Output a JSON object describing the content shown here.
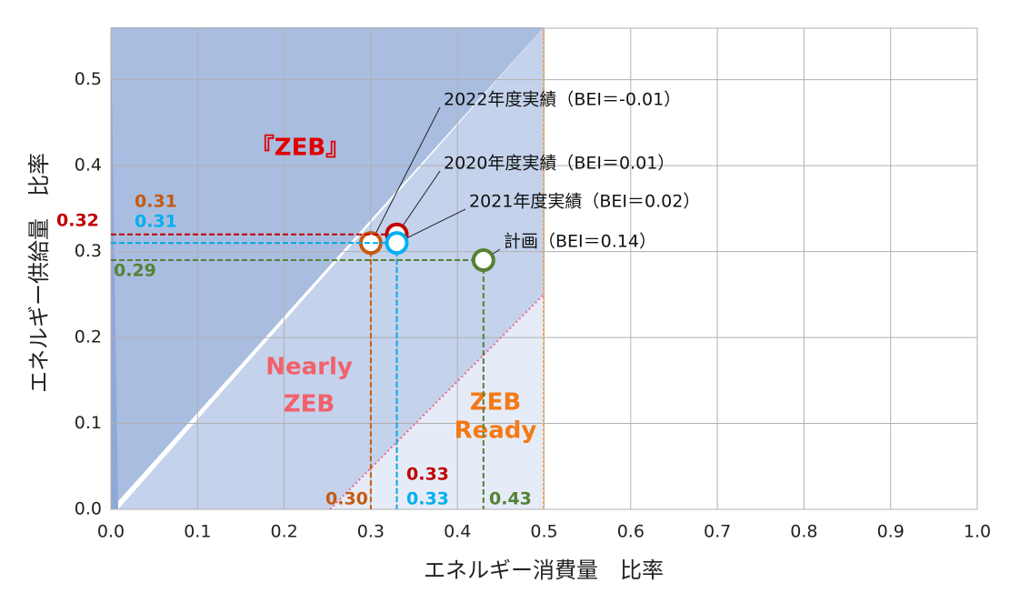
{
  "chart_data": {
    "type": "scatter",
    "x_label": "エネルギー消費量　比率",
    "y_label": "エネルギー供給量　比率",
    "xlim": [
      0,
      1
    ],
    "ylim": [
      0,
      0.56
    ],
    "xticks": [
      {
        "value": 0,
        "label": "0.0"
      },
      {
        "value": 0.1,
        "label": "0.1"
      },
      {
        "value": 0.2,
        "label": "0.2"
      },
      {
        "value": 0.3,
        "label": "0.3"
      },
      {
        "value": 0.4,
        "label": "0.4"
      },
      {
        "value": 0.5,
        "label": "0.5"
      },
      {
        "value": 0.6,
        "label": "0.6"
      },
      {
        "value": 0.7,
        "label": "0.7"
      },
      {
        "value": 0.8,
        "label": "0.8"
      },
      {
        "value": 0.9,
        "label": "0.9"
      },
      {
        "value": 1,
        "label": "1.0"
      }
    ],
    "yticks": [
      {
        "value": 0,
        "label": "0.0"
      },
      0.1,
      0.2,
      0.3,
      0.4,
      0.5
    ],
    "grid": true,
    "series": [
      {
        "name": "2022年度実績（BEI＝-0.01）",
        "color": "#c55a11",
        "x": [
          0.3
        ],
        "values": [
          0.31
        ],
        "x_labels": [
          "0.30"
        ],
        "value_labels": [
          "0.31"
        ]
      },
      {
        "name": "2020年度実績（BEI＝0.01）",
        "color": "#c00000",
        "x": [
          0.33
        ],
        "values": [
          0.32
        ],
        "x_labels": [
          "0.33"
        ],
        "value_labels": [
          "0.32"
        ]
      },
      {
        "name": "2021年度実績（BEI＝0.02）",
        "color": "#00b0f0",
        "x": [
          0.33
        ],
        "values": [
          0.31
        ],
        "x_labels": [
          "0.33"
        ],
        "value_labels": [
          "0.31"
        ]
      },
      {
        "name": "計画（BEI＝0.14）",
        "color": "#548235",
        "x": [
          0.43
        ],
        "values": [
          0.29
        ],
        "x_labels": [
          "0.43"
        ],
        "value_labels": [
          "0.29"
        ]
      }
    ],
    "annotations": [
      {
        "text": "『ZEB』",
        "color": "#e00000"
      },
      {
        "text": "Nearly",
        "color": "#f2616b"
      },
      {
        "text": "ZEB",
        "color": "#f2616b"
      },
      {
        "text": "ZEB",
        "color": "#f47a16"
      },
      {
        "text": "Ready",
        "color": "#f47a16"
      }
    ]
  }
}
